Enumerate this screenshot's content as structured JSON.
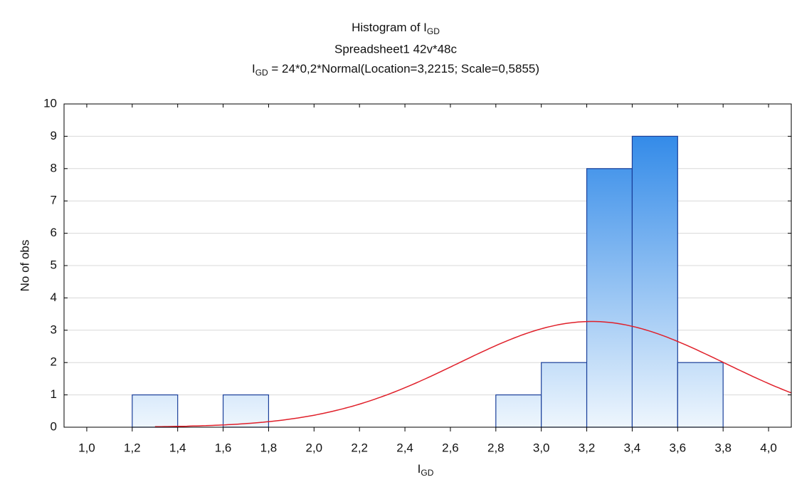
{
  "chart_data": {
    "type": "histogram",
    "title": {
      "text": "Histogram of I",
      "sub": "GD"
    },
    "subtitle": "Spreadsheet1 42v*48c",
    "formula": {
      "text": "I",
      "sub": "GD",
      "rest": " = 24*0,2*Normal(Location=3,2215; Scale=0,5855)"
    },
    "xlabel": {
      "text": "I",
      "sub": "GD"
    },
    "ylabel": "No of obs",
    "bins": [
      1.2,
      1.4,
      1.6,
      1.8,
      2.0,
      2.2,
      2.4,
      2.6,
      2.8,
      3.0,
      3.2,
      3.4,
      3.6,
      3.8
    ],
    "values": [
      1,
      0,
      1,
      0,
      0,
      0,
      0,
      0,
      1,
      2,
      8,
      9,
      2
    ],
    "color": "#1f7fe6",
    "fit": {
      "n": 24,
      "bin_width": 0.2,
      "location": 3.2215,
      "scale": 0.5855,
      "xrange": [
        1.3,
        4.1
      ],
      "color": "#e0202a"
    },
    "xlim": [
      0.9,
      4.1
    ],
    "ylim": [
      0,
      10
    ],
    "xticks": [
      {
        "value": 1.0,
        "label": "1,0"
      },
      {
        "value": 1.2,
        "label": "1,2"
      },
      {
        "value": 1.4,
        "label": "1,4"
      },
      {
        "value": 1.6,
        "label": "1,6"
      },
      {
        "value": 1.8,
        "label": "1,8"
      },
      {
        "value": 2.0,
        "label": "2,0"
      },
      {
        "value": 2.2,
        "label": "2,2"
      },
      {
        "value": 2.4,
        "label": "2,4"
      },
      {
        "value": 2.6,
        "label": "2,6"
      },
      {
        "value": 2.8,
        "label": "2,8"
      },
      {
        "value": 3.0,
        "label": "3,0"
      },
      {
        "value": 3.2,
        "label": "3,2"
      },
      {
        "value": 3.4,
        "label": "3,4"
      },
      {
        "value": 3.6,
        "label": "3,6"
      },
      {
        "value": 3.8,
        "label": "3,8"
      },
      {
        "value": 4.0,
        "label": "4,0"
      }
    ],
    "yticks": [
      0,
      1,
      2,
      3,
      4,
      5,
      6,
      7,
      8,
      9,
      10
    ],
    "grid": true
  }
}
